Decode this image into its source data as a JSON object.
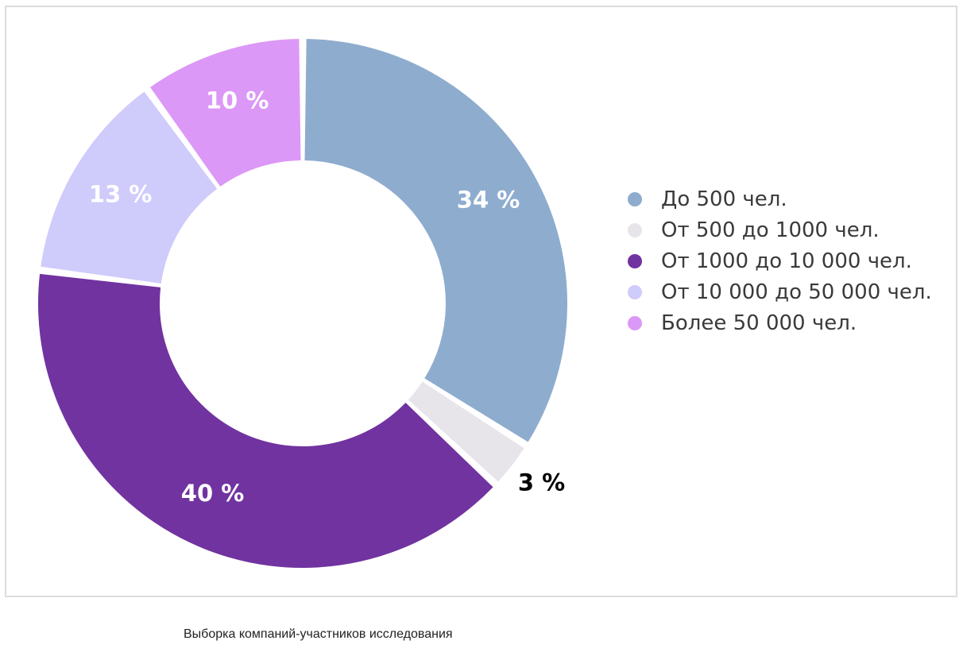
{
  "chart_data": {
    "type": "pie",
    "donut": true,
    "labels": [
      "До 500 чел.",
      "От 500 до 1000 чел.",
      "От 1000 до 10 000 чел.",
      "От 10 000 до 50 000 чел.",
      "Более 50 000 чел."
    ],
    "values": [
      34,
      3,
      40,
      13,
      10
    ],
    "value_labels": [
      "34 %",
      "3 %",
      "40 %",
      "13 %",
      "10 %"
    ],
    "colors": [
      "#8eacce",
      "#e7e5ea",
      "#7133a0",
      "#cfcbfb",
      "#dc98f6"
    ],
    "label_colors": [
      "#ffffff",
      "#000000",
      "#ffffff",
      "#ffffff",
      "#ffffff"
    ],
    "legend_position": "right"
  },
  "caption": "Выборка компаний-участников исследования"
}
